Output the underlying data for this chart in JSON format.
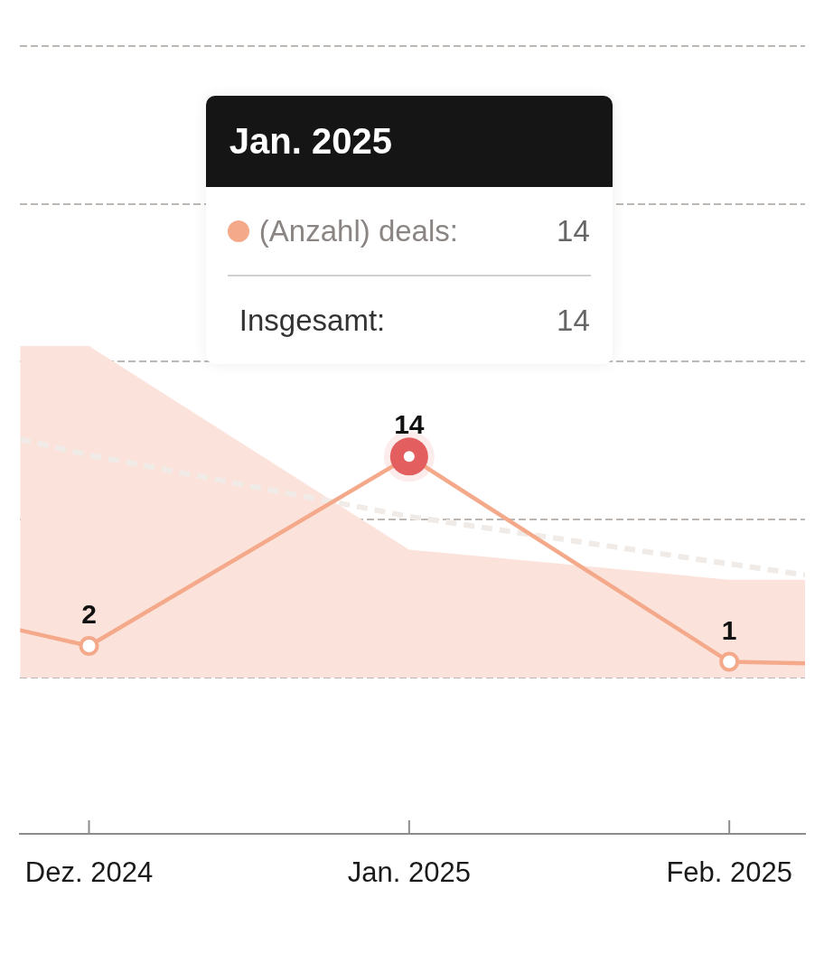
{
  "chart_data": {
    "type": "line",
    "xlim": [
      "2024-11-24T08:00",
      "2025-02-08T08:00"
    ],
    "xticks": [
      {
        "value": "2024-12",
        "label": "Dez. 2024"
      },
      {
        "value": "2025-01",
        "label": "Jan. 2025"
      },
      {
        "value": "2025-02",
        "label": "Feb. 2025"
      }
    ],
    "ylim": [
      -9.9,
      40
    ],
    "yticks": [
      {
        "value": 0,
        "label": null
      },
      {
        "value": 10,
        "label": null
      },
      {
        "value": 20,
        "label": null
      },
      {
        "value": 30,
        "label": null
      },
      {
        "value": 40,
        "label": null
      }
    ],
    "tick_labels": "x",
    "grid": "y",
    "marker": "circle",
    "series": [
      {
        "type": "area",
        "color": "#fbe3db",
        "marker": "none",
        "x": [
          "2024-11-24T08:00",
          "2024-12",
          "2025-01",
          "2025-02",
          "2025-02-08T08:00"
        ],
        "values": [
          21,
          21,
          8.1,
          6.2,
          6.2
        ]
      },
      {
        "type": "line",
        "color": "#f1ebe7",
        "line_style": "dashed",
        "marker": "none",
        "x": [
          "2024-11-24T08:00",
          "2024-12",
          "2025-01",
          "2025-02",
          "2025-02-08T08:00"
        ],
        "values": [
          15.1,
          14.1,
          10.2,
          7.2,
          6.5
        ]
      },
      {
        "name": "(Anzahl) deals:",
        "color": "#f4a98a",
        "x": [
          "2024-11-24T08:00",
          "2024-12",
          "2025-01",
          "2025-02",
          "2025-02-08T08:00"
        ],
        "values": [
          3,
          2,
          14,
          1,
          0.9
        ],
        "value_labels": [
          null,
          "2",
          "14",
          "1",
          null
        ]
      },
      {
        "type": "scatter",
        "color": "#e35f5f",
        "x": [
          "2025-01"
        ],
        "values": [
          14
        ]
      }
    ],
    "annotations": [
      "Jan. 2025",
      "14",
      "Insgesamt:",
      "14"
    ]
  }
}
